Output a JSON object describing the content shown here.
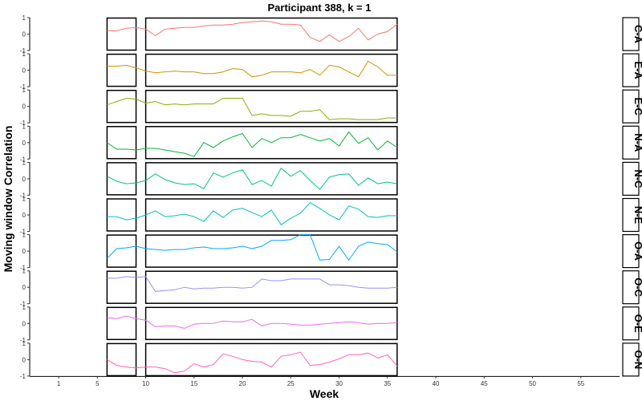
{
  "chart_data": {
    "type": "line",
    "title": "Participant 388, k = 1",
    "xlabel": "Week",
    "ylabel": "Moving window Correlation",
    "xlim": [
      -2,
      59
    ],
    "ylim": [
      -1,
      1
    ],
    "x_ticks": [
      1,
      5,
      10,
      15,
      20,
      25,
      30,
      35,
      40,
      45,
      50,
      55
    ],
    "y_ticks": [
      -1,
      0,
      1
    ],
    "windows": [
      [
        6,
        9
      ],
      [
        10,
        36
      ]
    ],
    "x": [
      6,
      7,
      8,
      9,
      10,
      11,
      12,
      13,
      14,
      15,
      16,
      17,
      18,
      19,
      20,
      21,
      22,
      23,
      24,
      25,
      26,
      27,
      28,
      29,
      30,
      31,
      32,
      33,
      34,
      35,
      36
    ],
    "series": [
      {
        "name": "C-A",
        "color": "#F8766D",
        "values": [
          0.2,
          0.2,
          0.35,
          0.4,
          0.3,
          -0.1,
          0.3,
          0.35,
          0.4,
          0.4,
          0.5,
          0.55,
          0.55,
          0.6,
          0.7,
          0.75,
          0.8,
          0.75,
          0.6,
          0.6,
          0.55,
          -0.2,
          -0.45,
          -0.05,
          -0.45,
          -0.15,
          0.35,
          -0.35,
          0.0,
          0.15,
          0.6
        ]
      },
      {
        "name": "E-A",
        "color": "#D39200",
        "values": [
          0.25,
          0.25,
          0.3,
          0.15,
          -0.05,
          -0.15,
          -0.1,
          -0.05,
          -0.1,
          -0.1,
          -0.2,
          -0.2,
          -0.1,
          0.1,
          0.05,
          -0.4,
          -0.3,
          -0.1,
          -0.1,
          -0.1,
          -0.15,
          0.05,
          -0.3,
          0.3,
          0.2,
          -0.1,
          -0.4,
          0.55,
          0.2,
          -0.3,
          -0.3
        ]
      },
      {
        "name": "E-C",
        "color": "#93AA00",
        "values": [
          0.1,
          0.3,
          0.5,
          0.45,
          0.2,
          0.3,
          0.1,
          0.15,
          0.1,
          0.15,
          0.15,
          0.15,
          0.5,
          0.5,
          0.5,
          -0.55,
          -0.45,
          -0.55,
          -0.55,
          -0.6,
          -0.3,
          -0.3,
          -0.2,
          -0.8,
          -0.75,
          -0.75,
          -0.8,
          -0.8,
          -0.8,
          -0.7,
          -0.7
        ]
      },
      {
        "name": "N-A",
        "color": "#00BA38",
        "values": [
          0.0,
          -0.4,
          -0.4,
          -0.45,
          -0.35,
          -0.35,
          -0.45,
          -0.55,
          -0.65,
          -0.85,
          0.0,
          -0.3,
          0.1,
          0.35,
          0.55,
          -0.3,
          0.25,
          0.0,
          0.3,
          0.3,
          0.5,
          0.3,
          0.1,
          0.25,
          -0.2,
          0.65,
          -0.05,
          0.3,
          -0.45,
          0.1,
          -0.3
        ]
      },
      {
        "name": "N-C",
        "color": "#00C08B",
        "values": [
          0.15,
          -0.15,
          -0.3,
          -0.25,
          -0.1,
          0.3,
          -0.05,
          -0.25,
          -0.35,
          -0.3,
          -0.6,
          0.35,
          0.1,
          0.35,
          0.55,
          -0.35,
          -0.1,
          -0.45,
          0.65,
          0.15,
          0.5,
          -0.1,
          -0.65,
          0.1,
          0.25,
          0.3,
          -0.4,
          0.05,
          -0.3,
          -0.2,
          -0.3
        ]
      },
      {
        "name": "N-E",
        "color": "#00BFC4",
        "values": [
          -0.1,
          -0.1,
          -0.3,
          -0.2,
          0.0,
          0.25,
          -0.1,
          -0.05,
          0.05,
          -0.1,
          -0.4,
          0.25,
          -0.15,
          0.3,
          0.4,
          0.15,
          -0.1,
          0.3,
          -0.6,
          -0.2,
          0.1,
          0.75,
          0.4,
          0.0,
          -0.3,
          0.55,
          0.35,
          -0.1,
          -0.15,
          -0.05,
          -0.05
        ]
      },
      {
        "name": "O-A",
        "color": "#00A9FF",
        "values": [
          -0.45,
          0.15,
          0.2,
          0.3,
          0.15,
          0.1,
          0.05,
          0.1,
          0.1,
          0.2,
          0.25,
          0.15,
          0.15,
          0.2,
          0.3,
          0.15,
          0.3,
          0.65,
          0.65,
          0.7,
          1.0,
          1.0,
          -0.55,
          -0.5,
          0.3,
          -0.55,
          0.3,
          0.55,
          0.45,
          0.4,
          -0.05
        ]
      },
      {
        "name": "O-C",
        "color": "#9590FF",
        "values": [
          0.55,
          0.55,
          0.65,
          0.6,
          0.65,
          -0.25,
          -0.2,
          -0.15,
          0.0,
          -0.1,
          -0.05,
          -0.05,
          0.0,
          0.0,
          -0.05,
          0.0,
          0.5,
          0.4,
          0.4,
          0.5,
          0.5,
          0.5,
          0.5,
          0.15,
          0.15,
          0.1,
          0.0,
          -0.05,
          -0.05,
          -0.05,
          0.0
        ]
      },
      {
        "name": "O-E",
        "color": "#E76BF3",
        "values": [
          0.35,
          0.3,
          0.45,
          0.3,
          0.2,
          -0.2,
          -0.15,
          -0.15,
          -0.3,
          -0.05,
          0.0,
          0.0,
          0.15,
          0.1,
          0.1,
          0.25,
          -0.15,
          0.0,
          0.0,
          -0.05,
          -0.1,
          -0.1,
          -0.05,
          0.0,
          0.05,
          0.1,
          0.05,
          -0.05,
          0.0,
          0.0,
          0.05
        ]
      },
      {
        "name": "O-N",
        "color": "#FF62BC",
        "values": [
          0.0,
          -0.35,
          -0.45,
          -0.5,
          -0.45,
          -0.45,
          -0.55,
          -0.8,
          -0.7,
          -0.25,
          -0.45,
          -0.3,
          0.35,
          0.2,
          0.0,
          -0.1,
          -0.15,
          -0.45,
          0.2,
          0.3,
          0.45,
          -0.35,
          -0.3,
          -0.15,
          0.05,
          0.3,
          0.3,
          0.4,
          0.1,
          0.3,
          -0.4
        ]
      }
    ]
  }
}
